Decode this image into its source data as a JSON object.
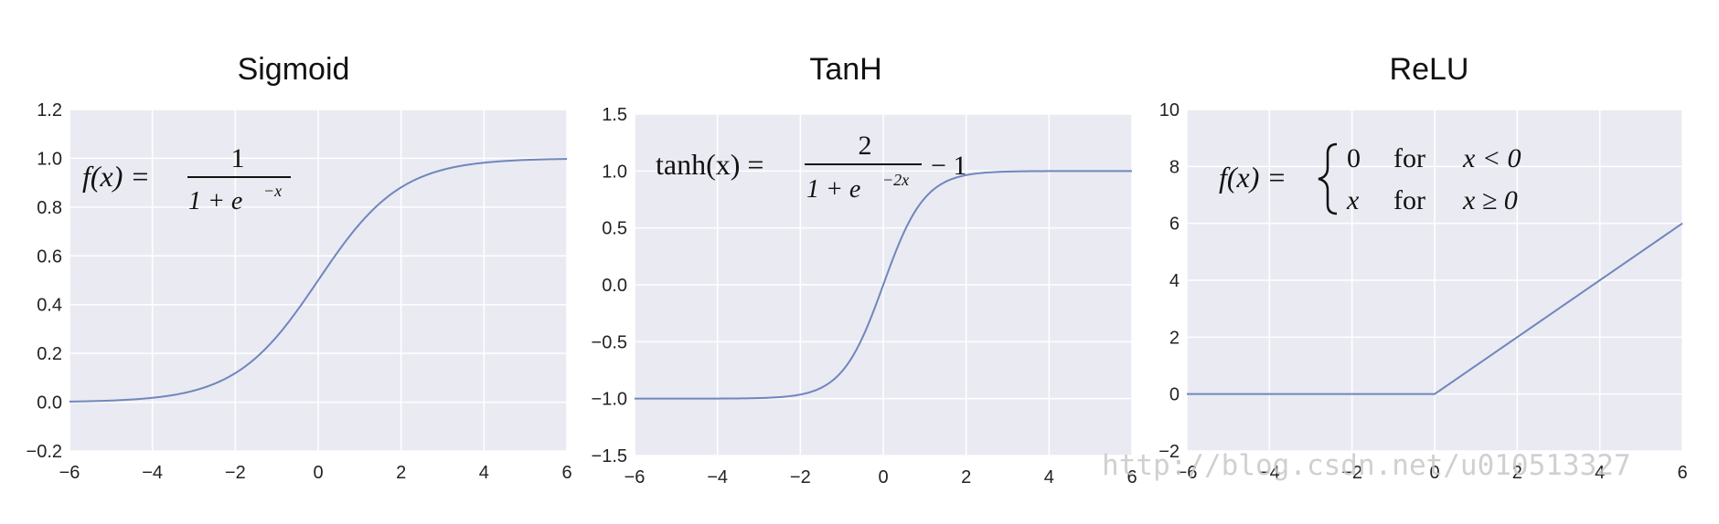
{
  "chart_data": [
    {
      "type": "line",
      "title": "Sigmoid",
      "function": "sigmoid",
      "xlim": [
        -6,
        6
      ],
      "ylim": [
        -0.2,
        1.2
      ],
      "xticks": [
        -6,
        -4,
        -2,
        0,
        2,
        4,
        6
      ],
      "yticks": [
        -0.2,
        0.0,
        0.2,
        0.4,
        0.6,
        0.8,
        1.0,
        1.2
      ],
      "xtick_labels": [
        "−6",
        "−4",
        "−2",
        "0",
        "2",
        "4",
        "6"
      ],
      "ytick_labels": [
        "−0.2",
        "0.0",
        "0.2",
        "0.4",
        "0.6",
        "0.8",
        "1.0",
        "1.2"
      ],
      "x": [
        -6,
        -4,
        -2,
        -1,
        0,
        1,
        2,
        4,
        6
      ],
      "y": [
        0.0025,
        0.018,
        0.119,
        0.269,
        0.5,
        0.731,
        0.881,
        0.982,
        0.9975
      ],
      "formula": {
        "lhs": "f(x) =",
        "numerator": "1",
        "denominator": "1 + e",
        "exponent": "−x"
      },
      "grid": true,
      "line_color": "#7086bd",
      "background": "#eaeaf2"
    },
    {
      "type": "line",
      "title": "TanH",
      "function": "tanh",
      "xlim": [
        -6,
        6
      ],
      "ylim": [
        -1.5,
        1.5
      ],
      "xticks": [
        -6,
        -4,
        -2,
        0,
        2,
        4,
        6
      ],
      "yticks": [
        -1.5,
        -1.0,
        -0.5,
        0.0,
        0.5,
        1.0,
        1.5
      ],
      "xtick_labels": [
        "−6",
        "−4",
        "−2",
        "0",
        "2",
        "4",
        "6"
      ],
      "ytick_labels": [
        "−1.5",
        "−1.0",
        "−0.5",
        "0.0",
        "0.5",
        "1.0",
        "1.5"
      ],
      "x": [
        -6,
        -4,
        -2,
        -1,
        0,
        1,
        2,
        4,
        6
      ],
      "y": [
        -1.0,
        -0.999,
        -0.964,
        -0.762,
        0.0,
        0.762,
        0.964,
        0.999,
        1.0
      ],
      "formula": {
        "lhs": "tanh(x) =",
        "numerator": "2",
        "denominator": "1 + e",
        "exponent": "−2x",
        "suffix": "− 1"
      },
      "grid": true,
      "line_color": "#7086bd",
      "background": "#eaeaf2"
    },
    {
      "type": "line",
      "title": "ReLU",
      "function": "relu",
      "xlim": [
        -6,
        6
      ],
      "ylim": [
        -2,
        10
      ],
      "xticks": [
        -6,
        -4,
        -2,
        0,
        2,
        4,
        6
      ],
      "yticks": [
        -2,
        0,
        2,
        4,
        6,
        8,
        10
      ],
      "xtick_labels": [
        "−6",
        "−4",
        "−2",
        "0",
        "2",
        "4",
        "6"
      ],
      "ytick_labels": [
        "−2",
        "0",
        "2",
        "4",
        "6",
        "8",
        "10"
      ],
      "x": [
        -6,
        0,
        6
      ],
      "y": [
        0,
        0,
        6
      ],
      "formula": {
        "lhs": "f(x) =",
        "case1": [
          "0",
          "for",
          "x < 0"
        ],
        "case2": [
          "x",
          "for",
          "x ≥ 0"
        ]
      },
      "grid": true,
      "line_color": "#7086bd",
      "background": "#eaeaf2"
    }
  ],
  "watermark": "http://blog.csdn.net/u010513327"
}
